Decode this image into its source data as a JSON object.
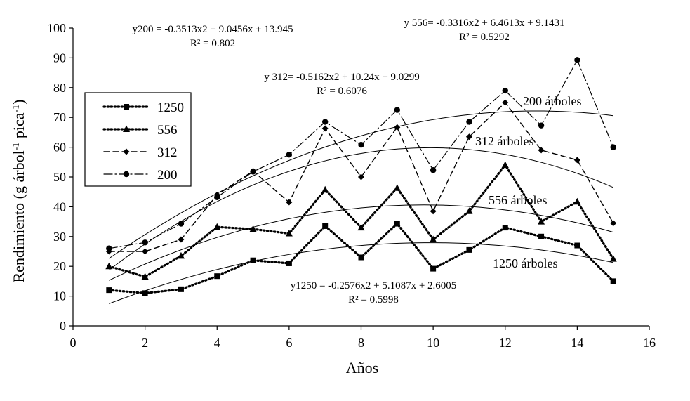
{
  "chart_data": {
    "type": "line",
    "title": "",
    "xlabel": "Años",
    "ylabel": "Rendimiento (g árbol⁻¹ pica⁻¹)",
    "ylabel_parts": [
      "Rendimiento (g árbol",
      "-1",
      " pica",
      "-1",
      ")"
    ],
    "xlim": [
      0,
      16
    ],
    "ylim": [
      0,
      100
    ],
    "xticks": [
      0,
      2,
      4,
      6,
      8,
      10,
      12,
      14,
      16
    ],
    "yticks": [
      0,
      10,
      20,
      30,
      40,
      50,
      60,
      70,
      80,
      90,
      100
    ],
    "grid": false,
    "legend_placement": "left",
    "x": [
      1,
      2,
      3,
      4,
      5,
      6,
      7,
      8,
      9,
      10,
      11,
      12,
      13,
      14,
      15
    ],
    "series": [
      {
        "name": "1250",
        "marker": "square",
        "dash": "dotted",
        "values": [
          12,
          11,
          12.3,
          16.7,
          22,
          21,
          33.5,
          23,
          34.3,
          19.2,
          25.5,
          33,
          30,
          27,
          15
        ]
      },
      {
        "name": "556",
        "marker": "triangle",
        "dash": "dotted",
        "values": [
          20,
          16.5,
          23.5,
          33.2,
          32.5,
          31,
          45.7,
          33,
          46.3,
          29,
          38.5,
          54,
          35,
          41.7,
          22.5
        ]
      },
      {
        "name": "312",
        "marker": "diamond",
        "dash": "dashed",
        "values": [
          25,
          25,
          29,
          44,
          52,
          41.5,
          66.3,
          50,
          66.7,
          38.5,
          63.5,
          75,
          59,
          55.7,
          34.5
        ]
      },
      {
        "name": "200",
        "marker": "circle",
        "dash": "dashdot",
        "values": [
          26,
          28,
          34.3,
          43.2,
          51.8,
          57.5,
          68.5,
          60.8,
          72.5,
          52.3,
          68.5,
          79,
          67.3,
          89.3,
          60
        ]
      }
    ],
    "trendlines": [
      {
        "series": "1250",
        "a": -0.2576,
        "b": 5.1087,
        "c": 2.6005
      },
      {
        "series": "556",
        "a": -0.3316,
        "b": 6.4613,
        "c": 9.1431
      },
      {
        "series": "312",
        "a": -0.5162,
        "b": 10.24,
        "c": 9.0299
      },
      {
        "series": "200",
        "a": -0.3513,
        "b": 9.0456,
        "c": 13.945
      }
    ],
    "annotations": {
      "eq200": "y200 = -0.3513x2 + 9.0456x + 13.945",
      "r200": "R² = 0.802",
      "eq556": "y 556= -0.3316x2 + 6.4613x + 9.1431",
      "r556": "R² = 0.5292",
      "eq312": "y 312= -0.5162x2 + 10.24x + 9.0299",
      "r312": "R² = 0.6076",
      "eq1250": "y1250 = -0.2576x2 + 5.1087x + 2.6005",
      "r1250": "R² = 0.5998",
      "lbl200": "200 árboles",
      "lbl312": "312 árboles",
      "lbl556": "556 árboles",
      "lbl1250": "1250 árboles"
    }
  }
}
